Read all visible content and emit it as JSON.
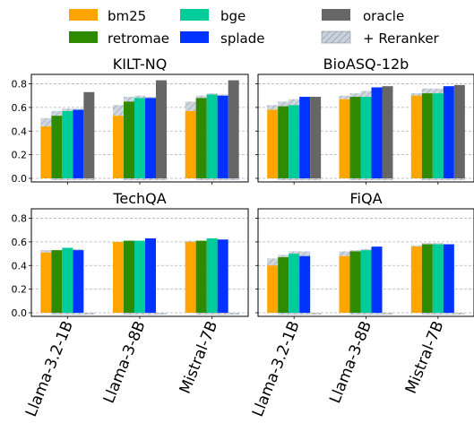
{
  "colors": {
    "bm25": "#ffa500",
    "retromae": "#2e8b00",
    "bge": "#00cc99",
    "splade": "#0033ff",
    "oracle": "#666666",
    "reranker_fill": "#c9d1dd",
    "reranker_hatch": "#8a8f99"
  },
  "legend": [
    {
      "key": "bm25",
      "label": "bm25"
    },
    {
      "key": "retromae",
      "label": "retromae"
    },
    {
      "key": "bge",
      "label": "bge"
    },
    {
      "key": "splade",
      "label": "splade"
    },
    {
      "key": "oracle",
      "label": "oracle"
    },
    {
      "key": "reranker",
      "label": "+ Reranker"
    }
  ],
  "chart_data": [
    {
      "type": "bar",
      "title": "KILT-NQ",
      "categories": [
        "Llama-3.2-1B",
        "Llama-3-8B",
        "Mistral-7B"
      ],
      "ylim": [
        0,
        0.88
      ],
      "yticks": [
        "0.0",
        "0.2",
        "0.4",
        "0.6",
        "0.8"
      ],
      "grid": true,
      "series": [
        {
          "name": "bm25",
          "values": [
            0.44,
            0.53,
            0.57
          ],
          "reranker": [
            0.51,
            0.62,
            0.65
          ]
        },
        {
          "name": "retromae",
          "values": [
            0.53,
            0.65,
            0.68
          ],
          "reranker": [
            0.57,
            0.69,
            0.7
          ]
        },
        {
          "name": "bge",
          "values": [
            0.57,
            0.68,
            0.71
          ],
          "reranker": [
            0.59,
            0.7,
            0.72
          ]
        },
        {
          "name": "splade",
          "values": [
            0.58,
            0.68,
            0.7
          ],
          "reranker": [
            0.59,
            0.69,
            0.71
          ]
        },
        {
          "name": "oracle",
          "values": [
            0.73,
            0.83,
            0.83
          ],
          "reranker": null
        }
      ]
    },
    {
      "type": "bar",
      "title": "BioASQ-12b",
      "categories": [
        "Llama-3.2-1B",
        "Llama-3-8B",
        "Mistral-7B"
      ],
      "ylim": [
        0,
        0.88
      ],
      "yticks": [],
      "grid": true,
      "series": [
        {
          "name": "bm25",
          "values": [
            0.58,
            0.67,
            0.7
          ],
          "reranker": [
            0.62,
            0.7,
            0.72
          ]
        },
        {
          "name": "retromae",
          "values": [
            0.61,
            0.69,
            0.72
          ],
          "reranker": [
            0.65,
            0.72,
            0.76
          ]
        },
        {
          "name": "bge",
          "values": [
            0.62,
            0.69,
            0.72
          ],
          "reranker": [
            0.67,
            0.74,
            0.76
          ]
        },
        {
          "name": "splade",
          "values": [
            0.69,
            0.77,
            0.78
          ],
          "reranker": [
            0.69,
            0.77,
            0.78
          ]
        },
        {
          "name": "oracle",
          "values": [
            0.69,
            0.78,
            0.79
          ],
          "reranker": null
        }
      ]
    },
    {
      "type": "bar",
      "title": "TechQA",
      "categories": [
        "Llama-3.2-1B",
        "Llama-3-8B",
        "Mistral-7B"
      ],
      "ylim": [
        0,
        0.88
      ],
      "yticks": [
        "0.0",
        "0.2",
        "0.4",
        "0.6",
        "0.8"
      ],
      "grid": true,
      "series": [
        {
          "name": "bm25",
          "values": [
            0.51,
            0.6,
            0.6
          ],
          "reranker": [
            0.53,
            0.6,
            0.61
          ]
        },
        {
          "name": "retromae",
          "values": [
            0.53,
            0.61,
            0.61
          ],
          "reranker": [
            0.53,
            0.61,
            0.61
          ]
        },
        {
          "name": "bge",
          "values": [
            0.55,
            0.61,
            0.63
          ],
          "reranker": [
            0.55,
            0.61,
            0.63
          ]
        },
        {
          "name": "splade",
          "values": [
            0.53,
            0.63,
            0.62
          ],
          "reranker": [
            0.54,
            0.63,
            0.62
          ]
        },
        {
          "name": "oracle",
          "values": [
            0.0,
            0.0,
            0.0
          ],
          "reranker": null
        }
      ]
    },
    {
      "type": "bar",
      "title": "FiQA",
      "categories": [
        "Llama-3.2-1B",
        "Llama-3-8B",
        "Mistral-7B"
      ],
      "ylim": [
        0,
        0.88
      ],
      "yticks": [],
      "grid": true,
      "series": [
        {
          "name": "bm25",
          "values": [
            0.4,
            0.48,
            0.56
          ],
          "reranker": [
            0.46,
            0.52,
            0.57
          ]
        },
        {
          "name": "retromae",
          "values": [
            0.47,
            0.52,
            0.58
          ],
          "reranker": [
            0.49,
            0.53,
            0.59
          ]
        },
        {
          "name": "bge",
          "values": [
            0.5,
            0.53,
            0.58
          ],
          "reranker": [
            0.52,
            0.54,
            0.59
          ]
        },
        {
          "name": "splade",
          "values": [
            0.48,
            0.56,
            0.58
          ],
          "reranker": [
            0.52,
            0.56,
            0.58
          ]
        },
        {
          "name": "oracle",
          "values": [
            0.0,
            0.0,
            0.0
          ],
          "reranker": null
        }
      ]
    }
  ]
}
